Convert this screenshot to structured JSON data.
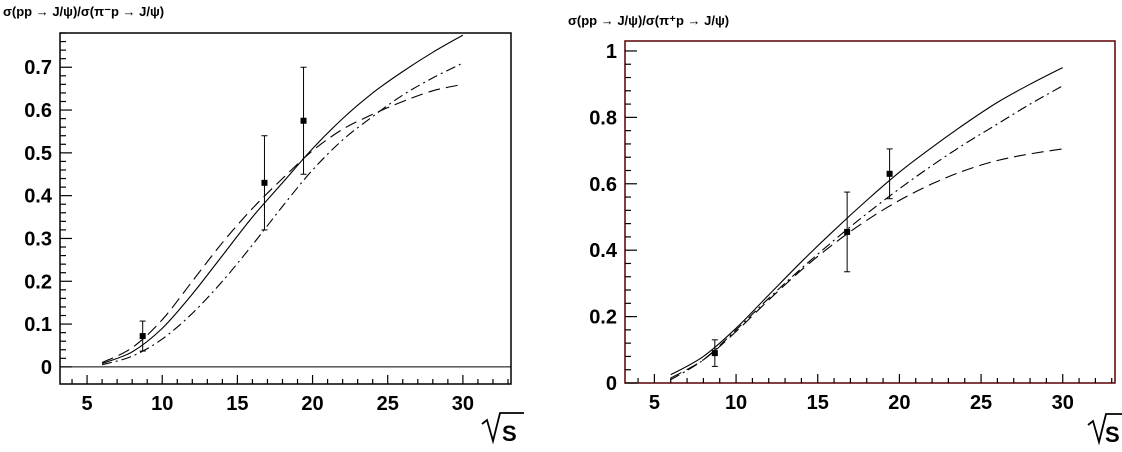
{
  "chart_data": [
    {
      "type": "line",
      "title": "σ(pp → J/ψ)/σ(π⁻p → J/ψ)",
      "xlabel": "√S",
      "xlim": [
        3.2,
        33.2
      ],
      "ylim": [
        -0.04,
        0.78
      ],
      "xticks": [
        5,
        10,
        15,
        20,
        25,
        30
      ],
      "xtick_labels": [
        "5",
        "10",
        "15",
        "20",
        "25",
        "30"
      ],
      "yticks": [
        0,
        0.1,
        0.2,
        0.3,
        0.4,
        0.5,
        0.6,
        0.7
      ],
      "ytick_labels": [
        "0",
        "0.1",
        "0.2",
        "0.3",
        "0.4",
        "0.5",
        "0.6",
        "0.7"
      ],
      "zero_line": true,
      "series": [
        {
          "style": "solid",
          "x": [
            6,
            8,
            10,
            12,
            14,
            16,
            18,
            20,
            22,
            24,
            26,
            28,
            30
          ],
          "y": [
            0.008,
            0.035,
            0.09,
            0.17,
            0.26,
            0.35,
            0.43,
            0.51,
            0.58,
            0.64,
            0.69,
            0.735,
            0.775
          ]
        },
        {
          "style": "dash",
          "x": [
            6,
            8,
            10,
            12,
            14,
            16,
            18,
            20,
            22,
            24,
            26,
            28,
            30
          ],
          "y": [
            0.01,
            0.045,
            0.11,
            0.2,
            0.29,
            0.37,
            0.44,
            0.505,
            0.555,
            0.59,
            0.62,
            0.645,
            0.66
          ]
        },
        {
          "style": "dashdot",
          "x": [
            6,
            8,
            10,
            12,
            14,
            16,
            18,
            20,
            22,
            24,
            26,
            28,
            30
          ],
          "y": [
            0.005,
            0.025,
            0.065,
            0.125,
            0.2,
            0.285,
            0.375,
            0.46,
            0.53,
            0.585,
            0.635,
            0.675,
            0.71
          ]
        }
      ],
      "points": [
        {
          "x": 8.7,
          "y": 0.072,
          "err": 0.035
        },
        {
          "x": 16.8,
          "y": 0.43,
          "err": 0.11
        },
        {
          "x": 19.4,
          "y": 0.575,
          "err": 0.125
        }
      ]
    },
    {
      "type": "line",
      "title": "σ(pp → J/ψ)/σ(π⁺p → J/ψ)",
      "xlabel": "√S",
      "xlim": [
        3.2,
        33.2
      ],
      "ylim": [
        0,
        1.03
      ],
      "xticks": [
        5,
        10,
        15,
        20,
        25,
        30
      ],
      "xtick_labels": [
        "5",
        "10",
        "15",
        "20",
        "25",
        "30"
      ],
      "yticks": [
        0,
        0.2,
        0.4,
        0.6,
        0.8,
        1
      ],
      "ytick_labels": [
        "0",
        "0.2",
        "0.4",
        "0.6",
        "0.8",
        "1"
      ],
      "zero_line": false,
      "series": [
        {
          "style": "solid",
          "x": [
            6,
            8,
            10,
            12,
            14,
            16,
            18,
            20,
            22,
            24,
            26,
            28,
            30
          ],
          "y": [
            0.025,
            0.08,
            0.165,
            0.265,
            0.365,
            0.46,
            0.55,
            0.635,
            0.71,
            0.78,
            0.845,
            0.9,
            0.95
          ]
        },
        {
          "style": "dash",
          "x": [
            6,
            8,
            10,
            12,
            14,
            16,
            18,
            20,
            22,
            24,
            26,
            28,
            30
          ],
          "y": [
            0.015,
            0.07,
            0.155,
            0.25,
            0.34,
            0.42,
            0.49,
            0.55,
            0.6,
            0.64,
            0.67,
            0.69,
            0.705
          ]
        },
        {
          "style": "dashdot",
          "x": [
            6,
            8,
            10,
            12,
            14,
            16,
            18,
            20,
            22,
            24,
            26,
            28,
            30
          ],
          "y": [
            0.01,
            0.07,
            0.16,
            0.255,
            0.345,
            0.43,
            0.51,
            0.585,
            0.655,
            0.72,
            0.78,
            0.84,
            0.895
          ]
        }
      ],
      "points": [
        {
          "x": 8.7,
          "y": 0.09,
          "err": 0.04
        },
        {
          "x": 16.8,
          "y": 0.455,
          "err": 0.12
        },
        {
          "x": 19.4,
          "y": 0.63,
          "err": 0.075
        }
      ]
    }
  ]
}
